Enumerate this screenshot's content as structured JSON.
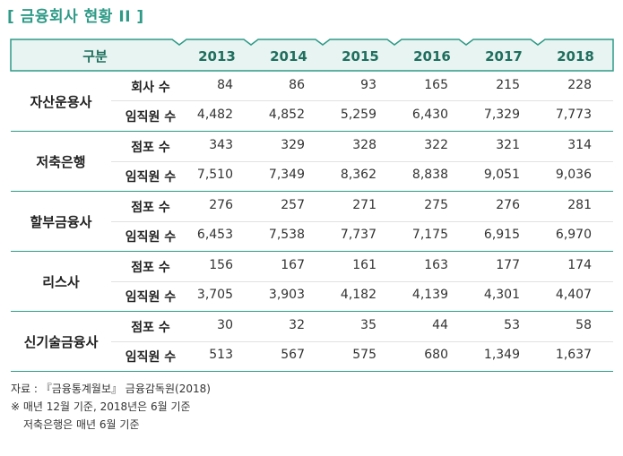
{
  "title": "[ 금융회사 현황 II ]",
  "header": {
    "label": "구분",
    "years": [
      "2013",
      "2014",
      "2015",
      "2016",
      "2017",
      "2018"
    ]
  },
  "groups": [
    {
      "category": "자산운용사",
      "rows": [
        {
          "metric": "회사 수",
          "values": [
            "84",
            "86",
            "93",
            "165",
            "215",
            "228"
          ]
        },
        {
          "metric": "임직원 수",
          "values": [
            "4,482",
            "4,852",
            "5,259",
            "6,430",
            "7,329",
            "7,773"
          ]
        }
      ]
    },
    {
      "category": "저축은행",
      "rows": [
        {
          "metric": "점포 수",
          "values": [
            "343",
            "329",
            "328",
            "322",
            "321",
            "314"
          ]
        },
        {
          "metric": "임직원 수",
          "values": [
            "7,510",
            "7,349",
            "8,362",
            "8,838",
            "9,051",
            "9,036"
          ]
        }
      ]
    },
    {
      "category": "할부금융사",
      "rows": [
        {
          "metric": "점포 수",
          "values": [
            "276",
            "257",
            "271",
            "275",
            "276",
            "281"
          ]
        },
        {
          "metric": "임직원 수",
          "values": [
            "6,453",
            "7,538",
            "7,737",
            "7,175",
            "6,915",
            "6,970"
          ]
        }
      ]
    },
    {
      "category": "리스사",
      "rows": [
        {
          "metric": "점포 수",
          "values": [
            "156",
            "167",
            "161",
            "163",
            "177",
            "174"
          ]
        },
        {
          "metric": "임직원 수",
          "values": [
            "3,705",
            "3,903",
            "4,182",
            "4,139",
            "4,301",
            "4,407"
          ]
        }
      ]
    },
    {
      "category": "신기술금융사",
      "rows": [
        {
          "metric": "점포 수",
          "values": [
            "30",
            "32",
            "35",
            "44",
            "53",
            "58"
          ]
        },
        {
          "metric": "임직원 수",
          "values": [
            "513",
            "567",
            "575",
            "680",
            "1,349",
            "1,637"
          ]
        }
      ]
    }
  ],
  "notes": [
    "자료 : 『금융통계월보』 금융감독원(2018)",
    "※ 매년 12월 기준, 2018년은 6월 기준",
    "저축은행은 매년 6월 기준"
  ],
  "colors": {
    "accent": "#2e9a87",
    "header_fill": "#e8f4f1",
    "header_text": "#1f6f5f"
  }
}
